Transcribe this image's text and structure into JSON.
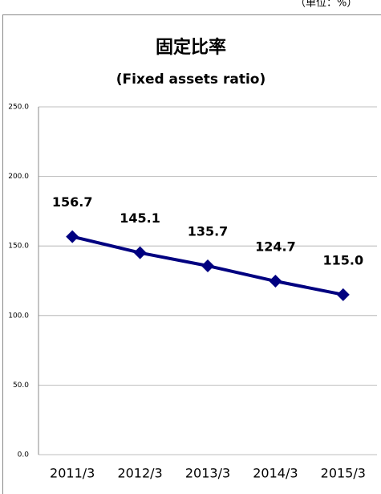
{
  "unit_note": "（単位：%）",
  "chart_data": {
    "type": "line",
    "title": "固定比率",
    "subtitle": "(Fixed assets ratio)",
    "categories": [
      "2011/3",
      "2012/3",
      "2013/3",
      "2014/3",
      "2015/3"
    ],
    "series": [
      {
        "name": "固定比率",
        "color": "#000080",
        "values": [
          156.7,
          145.1,
          135.7,
          124.7,
          115.0
        ],
        "value_labels": [
          "156.7",
          "145.1",
          "135.7",
          "124.7",
          "115.0"
        ]
      }
    ],
    "ylim": [
      0,
      250
    ],
    "yticks": [
      {
        "value": 0,
        "label": "0.0"
      },
      {
        "value": 50,
        "label": "50.0"
      },
      {
        "value": 100,
        "label": "100.0"
      },
      {
        "value": 150,
        "label": "150.0"
      },
      {
        "value": 200,
        "label": "200.0"
      },
      {
        "value": 250,
        "label": "250.0"
      }
    ],
    "grid": true
  }
}
